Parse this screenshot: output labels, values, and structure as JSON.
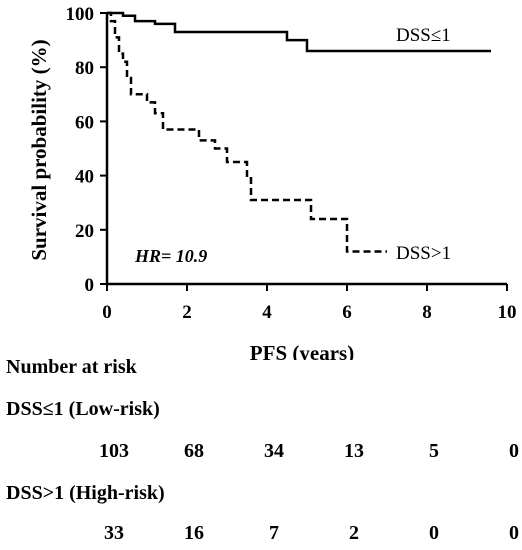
{
  "chart_data": {
    "type": "line",
    "subtype": "kaplan-meier",
    "title": "",
    "xlabel": "PFS (years)",
    "ylabel": "Survival probability (%)",
    "xlim": [
      0,
      10
    ],
    "ylim": [
      0,
      100
    ],
    "xticks": [
      0,
      2,
      4,
      6,
      8,
      10
    ],
    "yticks": [
      0,
      20,
      40,
      60,
      80,
      100
    ],
    "grid": false,
    "series": [
      {
        "name": "DSS≤1",
        "style": "solid",
        "steps": [
          [
            0,
            100
          ],
          [
            0.4,
            99
          ],
          [
            0.7,
            97
          ],
          [
            1.2,
            96
          ],
          [
            1.7,
            93
          ],
          [
            4.5,
            90
          ],
          [
            5.0,
            86
          ],
          [
            9.6,
            86
          ]
        ]
      },
      {
        "name": "DSS>1",
        "style": "dashed",
        "steps": [
          [
            0,
            100
          ],
          [
            0.1,
            97
          ],
          [
            0.2,
            91
          ],
          [
            0.3,
            85
          ],
          [
            0.4,
            82
          ],
          [
            0.5,
            76
          ],
          [
            0.6,
            70
          ],
          [
            1.0,
            67
          ],
          [
            1.2,
            63
          ],
          [
            1.4,
            57
          ],
          [
            2.3,
            53
          ],
          [
            2.7,
            50
          ],
          [
            3.0,
            45
          ],
          [
            3.5,
            39
          ],
          [
            3.6,
            31
          ],
          [
            5.1,
            24
          ],
          [
            6.0,
            12
          ],
          [
            7.0,
            12
          ]
        ]
      }
    ],
    "annotations": [
      "HR= 10.9"
    ]
  },
  "risk_table": {
    "title": "Number at risk",
    "times": [
      0,
      2,
      4,
      6,
      8,
      10
    ],
    "groups": [
      {
        "label": "DSS≤1 (Low-risk)",
        "counts": [
          "103",
          "68",
          "34",
          "13",
          "5",
          "0"
        ]
      },
      {
        "label": "DSS>1 (High-risk)",
        "counts": [
          "33",
          "16",
          "7",
          "2",
          "0",
          "0"
        ]
      }
    ]
  }
}
